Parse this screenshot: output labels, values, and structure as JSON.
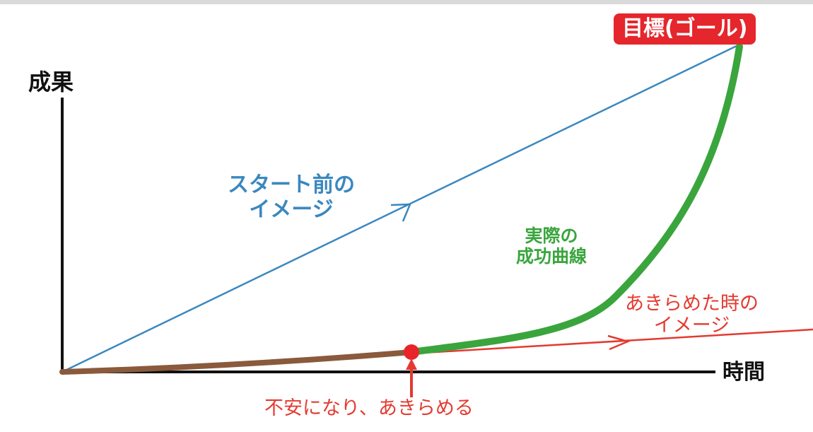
{
  "axes": {
    "y_label": "成果",
    "x_label": "時間"
  },
  "goal": {
    "label": "目標(ゴール)"
  },
  "expected_line": {
    "label_line1": "スタート前の",
    "label_line2": "イメージ"
  },
  "actual_curve": {
    "label_line1": "実際の",
    "label_line2": "成功曲線"
  },
  "giveup_line": {
    "label_line1": "あきらめた時の",
    "label_line2": "イメージ"
  },
  "giveup_point": {
    "label": "不安になり、あきらめる"
  },
  "colors": {
    "axis": "#111111",
    "expected": "#3a88bf",
    "actual": "#3aa53d",
    "early": "#8a5a3c",
    "giveup": "#e43a30",
    "goal_badge": "#e5262c"
  }
}
